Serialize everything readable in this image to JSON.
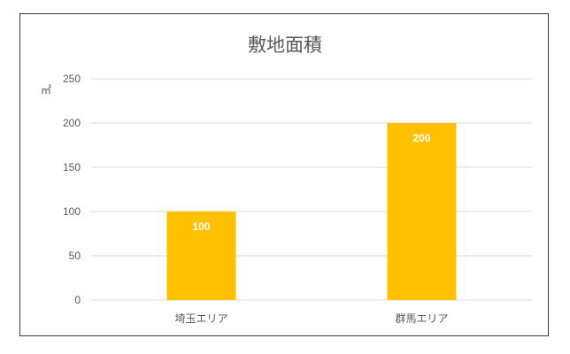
{
  "chart_data": {
    "type": "bar",
    "title": "敷地面積",
    "ylabel": "㎡",
    "xlabel": "",
    "categories": [
      "埼玉エリア",
      "群馬エリア"
    ],
    "values": [
      100,
      200
    ],
    "ylim": [
      0,
      250
    ],
    "yticks": [
      0,
      50,
      100,
      150,
      200,
      250
    ],
    "grid": true,
    "legend": "none",
    "data_labels": true,
    "bar_color": "#FFC000",
    "data_label_color": "#FFFFFF"
  }
}
